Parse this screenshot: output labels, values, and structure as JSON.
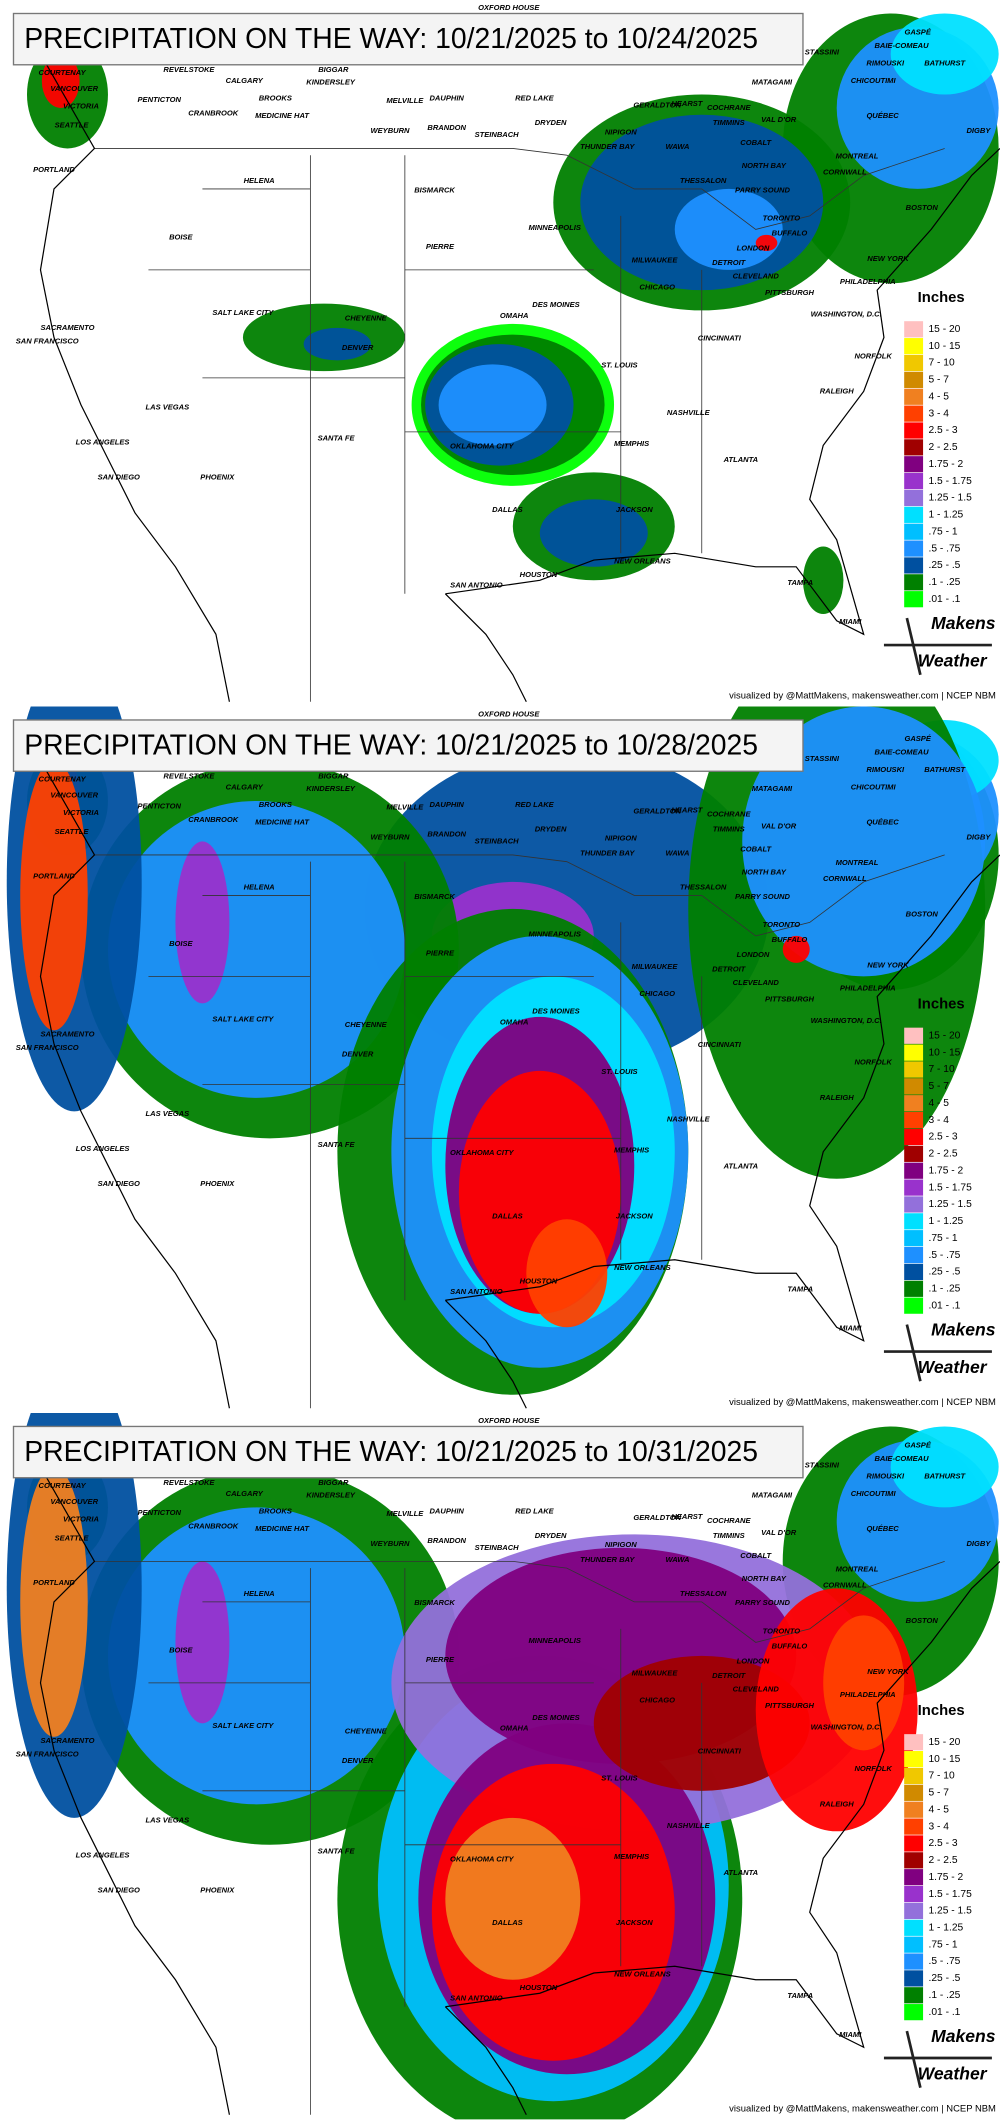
{
  "panels": [
    {
      "title": "PRECIPITATION ON THE WAY: 10/21/2025 to 10/24/2025"
    },
    {
      "title": "PRECIPITATION ON THE WAY: 10/21/2025 to 10/28/2025"
    },
    {
      "title": "PRECIPITATION ON THE WAY: 10/21/2025 to 10/31/2025"
    }
  ],
  "cities": [
    "OXFORD HOUSE",
    "GASPÉ",
    "BAIE-COMEAU",
    "RIMOUSKI",
    "BATHURST",
    "STASSINI",
    "CHICOUTIMI",
    "MATAGAMI",
    "COURTENAY",
    "REVELSTOKE",
    "BIGGAR",
    "VANCOUVER",
    "CALGARY",
    "KINDERSLEY",
    "VICTORIA",
    "PENTICTON",
    "BROOKS",
    "MELVILLE",
    "DAUPHIN",
    "RED LAKE",
    "CRANBROOK",
    "MEDICINE HAT",
    "DRYDEN",
    "GERALDTON",
    "HEARST",
    "COCHRANE",
    "TIMMINS",
    "VAL D'OR",
    "QUÉBEC",
    "SEATTLE",
    "WEYBURN",
    "BRANDON",
    "STEINBACH",
    "NIPIGON",
    "THUNDER BAY",
    "WAWA",
    "COBALT",
    "MONTREAL",
    "DIGBY",
    "NORTH BAY",
    "CORNWALL",
    "PORTLAND",
    "HELENA",
    "BISMARCK",
    "THESSALON",
    "PARRY SOUND",
    "BOSTON",
    "TORONTO",
    "BUFFALO",
    "LONDON",
    "NEW YORK",
    "BOISE",
    "PIERRE",
    "MINNEAPOLIS",
    "MILWAUKEE",
    "DETROIT",
    "CLEVELAND",
    "PHILADELPHIA",
    "CHICAGO",
    "PITTSBURGH",
    "WASHINGTON, D.C.",
    "SALT LAKE CITY",
    "CHEYENNE",
    "DES MOINES",
    "OMAHA",
    "SACRAMENTO",
    "SAN FRANCISCO",
    "CINCINNATI",
    "DENVER",
    "NORFOLK",
    "ST. LOUIS",
    "RALEIGH",
    "LAS VEGAS",
    "NASHVILLE",
    "SANTA FE",
    "LOS ANGELES",
    "MEMPHIS",
    "OKLAHOMA CITY",
    "ATLANTA",
    "SAN DIEGO",
    "PHOENIX",
    "DALLAS",
    "JACKSON",
    "NEW ORLEANS",
    "HOUSTON",
    "SAN ANTONIO",
    "TAMPA",
    "MIAMI"
  ],
  "legend": {
    "title": "Inches",
    "items": [
      {
        "label": "15 - 20",
        "color": "#ffc0c0"
      },
      {
        "label": "10 - 15",
        "color": "#ffff00"
      },
      {
        "label": "7 - 10",
        "color": "#f0c800"
      },
      {
        "label": "5 - 7",
        "color": "#d08a00"
      },
      {
        "label": "4 - 5",
        "color": "#f08020"
      },
      {
        "label": "3 - 4",
        "color": "#ff4000"
      },
      {
        "label": "2.5 - 3",
        "color": "#ff0000"
      },
      {
        "label": "2 - 2.5",
        "color": "#a00000"
      },
      {
        "label": "1.75 - 2",
        "color": "#800080"
      },
      {
        "label": "1.5 - 1.75",
        "color": "#9932cc"
      },
      {
        "label": "1.25 - 1.5",
        "color": "#9370db"
      },
      {
        "label": "1 - 1.25",
        "color": "#00e0ff"
      },
      {
        "label": ".75 - 1",
        "color": "#00bfff"
      },
      {
        "label": ".5 - .75",
        "color": "#1e90ff"
      },
      {
        "label": ".25 - .5",
        "color": "#0050a0"
      },
      {
        "label": ".1 - .25",
        "color": "#008000"
      },
      {
        "label": ".01 - .1",
        "color": "#00ff00"
      }
    ]
  },
  "credit": "visualized by @MattMakens, makensweather.com | NCEP NBM",
  "logo": {
    "top": "Makens",
    "bottom": "Weather"
  }
}
